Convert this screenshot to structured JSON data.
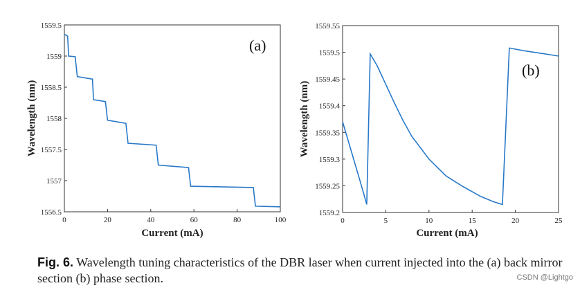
{
  "chart_data": [
    {
      "type": "line",
      "panel_label": "(a)",
      "xlabel": "Current (mA)",
      "ylabel": "Wavelength (nm)",
      "xlim": [
        0,
        100
      ],
      "ylim": [
        1556.5,
        1559.5
      ],
      "xticks": [
        "0",
        "20",
        "40",
        "60",
        "80",
        "100"
      ],
      "yticks": [
        "1556.5",
        "1557",
        "1557.5",
        "1558",
        "1558.5",
        "1559",
        "1559.5"
      ],
      "series": [
        {
          "name": "back mirror section",
          "color": "#2878c8",
          "x": [
            0,
            1.5,
            2,
            5,
            6,
            13,
            13.5,
            19,
            20,
            28.5,
            29.5,
            42.5,
            43.5,
            57.5,
            58.5,
            87.5,
            88.5,
            100
          ],
          "y": [
            1559.35,
            1559.32,
            1559.0,
            1558.99,
            1558.67,
            1558.63,
            1558.3,
            1558.27,
            1557.97,
            1557.92,
            1557.6,
            1557.57,
            1557.25,
            1557.21,
            1556.91,
            1556.89,
            1556.59,
            1556.58
          ]
        }
      ]
    },
    {
      "type": "line",
      "panel_label": "(b)",
      "xlabel": "Current (mA)",
      "ylabel": "Wavelength (nm)",
      "xlim": [
        0,
        25
      ],
      "ylim": [
        1559.2,
        1559.55
      ],
      "xticks": [
        "0",
        "5",
        "10",
        "15",
        "20",
        "25"
      ],
      "yticks": [
        "1559.2",
        "1559.25",
        "1559.3",
        "1559.35",
        "1559.4",
        "1559.45",
        "1559.5",
        "1559.55"
      ],
      "series": [
        {
          "name": "phase section",
          "color": "#2878c8",
          "x": [
            0,
            1,
            2,
            2.8,
            3.2,
            4,
            5,
            6,
            7,
            8,
            10,
            12,
            14,
            16,
            17.5,
            18.5,
            19.3,
            21,
            23,
            25
          ],
          "y": [
            1559.37,
            1559.315,
            1559.26,
            1559.215,
            1559.497,
            1559.475,
            1559.44,
            1559.405,
            1559.372,
            1559.343,
            1559.3,
            1559.268,
            1559.248,
            1559.23,
            1559.22,
            1559.215,
            1559.508,
            1559.503,
            1559.498,
            1559.493
          ]
        }
      ]
    }
  ],
  "caption": {
    "fig_no": "Fig. 6.",
    "text": "Wavelength tuning characteristics of the DBR laser when current injected into the (a) back mirror section (b) phase section."
  },
  "watermark": "CSDN @Lightgo"
}
